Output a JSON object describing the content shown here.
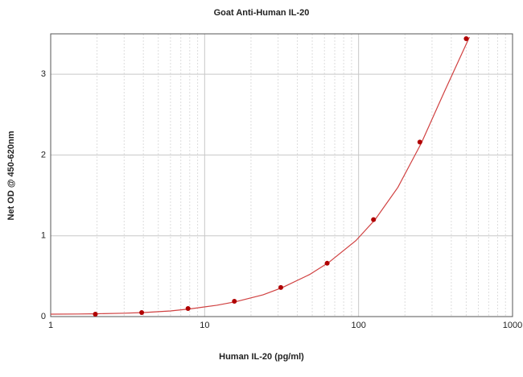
{
  "chart_data": {
    "type": "scatter",
    "title": "Goat Anti-Human IL-20",
    "x_label": "Human IL-20 (pg/ml)",
    "y_label": "Net OD @ 450-620nm",
    "x": [
      1.95,
      3.9,
      7.8,
      15.6,
      31.25,
      62.5,
      125,
      250,
      500
    ],
    "values": [
      0.03,
      0.05,
      0.1,
      0.19,
      0.36,
      0.66,
      1.2,
      2.16,
      3.44
    ],
    "color": "#b00000",
    "curve": {
      "x": [
        1,
        1.5,
        2,
        3,
        4,
        6,
        8,
        12,
        16,
        24,
        32,
        48,
        64,
        96,
        128,
        180,
        256,
        360,
        525
      ],
      "values": [
        0.03,
        0.032,
        0.035,
        0.042,
        0.05,
        0.07,
        0.095,
        0.14,
        0.185,
        0.27,
        0.36,
        0.52,
        0.67,
        0.94,
        1.2,
        1.6,
        2.15,
        2.78,
        3.46
      ],
      "color": "#d04040"
    },
    "xlim": [
      1,
      1000
    ],
    "ylim": [
      0,
      3.5
    ],
    "log_x": true,
    "xticks": [
      1,
      10,
      100,
      1000
    ],
    "yticks": [
      0,
      1,
      2,
      3
    ],
    "x_minor_grid": [
      2,
      3,
      4,
      5,
      6,
      7,
      8,
      9,
      20,
      30,
      40,
      50,
      60,
      70,
      80,
      90,
      200,
      300,
      400,
      500,
      600,
      700,
      800,
      900
    ],
    "grid": true
  }
}
